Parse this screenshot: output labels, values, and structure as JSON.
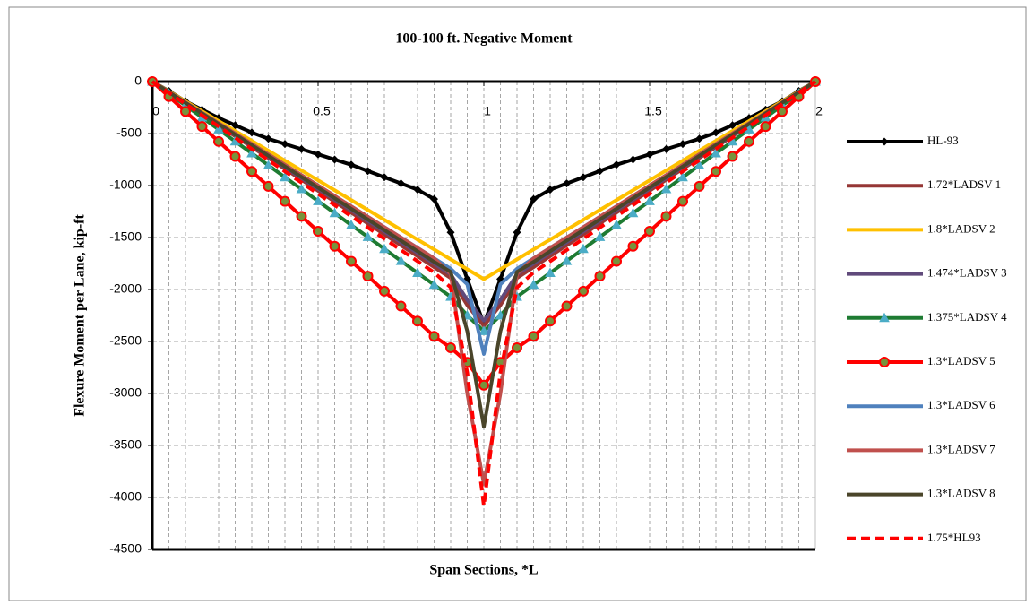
{
  "chart_data": {
    "type": "line",
    "title": "100-100 ft. Negative Moment",
    "x_label": "Span Sections, *L",
    "y_label": "Flexure Moment per Lane, kip-ft",
    "x": [
      0,
      0.05,
      0.1,
      0.15,
      0.2,
      0.25,
      0.3,
      0.35,
      0.4,
      0.45,
      0.5,
      0.55,
      0.6,
      0.65,
      0.7,
      0.75,
      0.8,
      0.85,
      0.9,
      0.95,
      1,
      1.05,
      1.1,
      1.15,
      1.2,
      1.25,
      1.3,
      1.35,
      1.4,
      1.45,
      1.5,
      1.55,
      1.6,
      1.65,
      1.7,
      1.75,
      1.8,
      1.85,
      1.9,
      1.95,
      2
    ],
    "xlim": [
      0,
      2
    ],
    "xticks": [
      0,
      0.5,
      1,
      1.5,
      2
    ],
    "ylim": [
      -4500,
      0
    ],
    "yticks": [
      0,
      -500,
      -1000,
      -1500,
      -2000,
      -2500,
      -3000,
      -3500,
      -4000,
      -4500
    ],
    "grid": true,
    "legend": "right",
    "series": [
      {
        "name": "HL-93",
        "color": "#000000",
        "marker": "diamond",
        "values": [
          0,
          -90,
          -190,
          -270,
          -350,
          -420,
          -490,
          -550,
          -600,
          -650,
          -700,
          -750,
          -800,
          -860,
          -920,
          -980,
          -1040,
          -1130,
          -1450,
          -1900,
          -2330,
          -1900,
          -1450,
          -1130,
          -1040,
          -980,
          -920,
          -860,
          -800,
          -750,
          -700,
          -650,
          -600,
          -550,
          -490,
          -420,
          -350,
          -270,
          -190,
          -90,
          0
        ]
      },
      {
        "name": "1.72*LADSV 1",
        "color": "#953735",
        "values": [
          0,
          -105,
          -210,
          -315,
          -420,
          -525,
          -630,
          -735,
          -840,
          -945,
          -1050,
          -1155,
          -1260,
          -1365,
          -1470,
          -1575,
          -1680,
          -1785,
          -1890,
          -2150,
          -2350,
          -2150,
          -1890,
          -1785,
          -1680,
          -1575,
          -1470,
          -1365,
          -1260,
          -1155,
          -1050,
          -945,
          -840,
          -735,
          -630,
          -525,
          -420,
          -315,
          -210,
          -105,
          0
        ]
      },
      {
        "name": "1.8*LADSV 2",
        "color": "#ffc000",
        "values": [
          0,
          -95,
          -190,
          -285,
          -380,
          -475,
          -570,
          -665,
          -760,
          -855,
          -950,
          -1045,
          -1140,
          -1235,
          -1330,
          -1425,
          -1520,
          -1615,
          -1710,
          -1805,
          -1900,
          -1805,
          -1710,
          -1615,
          -1520,
          -1425,
          -1330,
          -1235,
          -1140,
          -1045,
          -950,
          -855,
          -760,
          -665,
          -570,
          -475,
          -380,
          -285,
          -190,
          -95,
          0
        ]
      },
      {
        "name": "1.474*LADSV 3",
        "color": "#604a7b",
        "values": [
          0,
          -103,
          -206,
          -309,
          -412,
          -515,
          -618,
          -721,
          -824,
          -927,
          -1030,
          -1133,
          -1236,
          -1339,
          -1442,
          -1545,
          -1648,
          -1751,
          -1854,
          -2100,
          -2300,
          -2100,
          -1854,
          -1751,
          -1648,
          -1545,
          -1442,
          -1339,
          -1236,
          -1133,
          -1030,
          -927,
          -824,
          -721,
          -618,
          -515,
          -412,
          -309,
          -206,
          -103,
          0
        ]
      },
      {
        "name": "1.375*LADSV 4",
        "color": "#1e7b32",
        "marker": "triangle",
        "marker_color": "#4bacc6",
        "values": [
          0,
          -115,
          -230,
          -345,
          -460,
          -575,
          -690,
          -805,
          -920,
          -1035,
          -1150,
          -1265,
          -1380,
          -1495,
          -1610,
          -1725,
          -1840,
          -1955,
          -2070,
          -2250,
          -2400,
          -2250,
          -2070,
          -1955,
          -1840,
          -1725,
          -1610,
          -1495,
          -1380,
          -1265,
          -1150,
          -1035,
          -920,
          -805,
          -690,
          -575,
          -460,
          -345,
          -230,
          -115,
          0
        ]
      },
      {
        "name": "1.3*LADSV 5",
        "color": "#ff0000",
        "marker": "circle",
        "marker_color": "#77933c",
        "values": [
          0,
          -144,
          -288,
          -432,
          -576,
          -720,
          -864,
          -1008,
          -1152,
          -1296,
          -1440,
          -1584,
          -1728,
          -1872,
          -2016,
          -2160,
          -2304,
          -2450,
          -2560,
          -2700,
          -2920,
          -2700,
          -2560,
          -2450,
          -2304,
          -2160,
          -2016,
          -1872,
          -1728,
          -1584,
          -1440,
          -1296,
          -1152,
          -1008,
          -864,
          -720,
          -576,
          -432,
          -288,
          -144,
          0
        ]
      },
      {
        "name": "1.3*LADSV 6",
        "color": "#4f81bd",
        "values": [
          0,
          -100,
          -200,
          -300,
          -400,
          -500,
          -600,
          -700,
          -800,
          -900,
          -1000,
          -1100,
          -1200,
          -1300,
          -1400,
          -1500,
          -1600,
          -1700,
          -1800,
          -1950,
          -2620,
          -1950,
          -1800,
          -1700,
          -1600,
          -1500,
          -1400,
          -1300,
          -1200,
          -1100,
          -1000,
          -900,
          -800,
          -700,
          -600,
          -500,
          -400,
          -300,
          -200,
          -100,
          0
        ]
      },
      {
        "name": "1.3*LADSV 7",
        "color": "#c0504d",
        "values": [
          0,
          -100,
          -200,
          -300,
          -400,
          -500,
          -600,
          -700,
          -800,
          -900,
          -1000,
          -1100,
          -1200,
          -1300,
          -1400,
          -1500,
          -1600,
          -1700,
          -1850,
          -3000,
          -3870,
          -3000,
          -1850,
          -1700,
          -1600,
          -1500,
          -1400,
          -1300,
          -1200,
          -1100,
          -1000,
          -900,
          -800,
          -700,
          -600,
          -500,
          -400,
          -300,
          -200,
          -100,
          0
        ]
      },
      {
        "name": "1.3*LADSV 8",
        "color": "#4a452a",
        "values": [
          0,
          -102,
          -204,
          -306,
          -408,
          -510,
          -612,
          -714,
          -816,
          -918,
          -1020,
          -1122,
          -1224,
          -1326,
          -1428,
          -1530,
          -1632,
          -1734,
          -1830,
          -2400,
          -3320,
          -2400,
          -1830,
          -1734,
          -1632,
          -1530,
          -1428,
          -1326,
          -1224,
          -1122,
          -1020,
          -918,
          -816,
          -714,
          -612,
          -510,
          -408,
          -306,
          -204,
          -102,
          0
        ]
      },
      {
        "name": "1.75*HL93",
        "color": "#ff0000",
        "dashed": true,
        "values": [
          0,
          -108,
          -216,
          -324,
          -432,
          -540,
          -648,
          -756,
          -864,
          -972,
          -1080,
          -1188,
          -1296,
          -1404,
          -1512,
          -1620,
          -1728,
          -1836,
          -1980,
          -2800,
          -4080,
          -2800,
          -1980,
          -1836,
          -1728,
          -1620,
          -1512,
          -1404,
          -1296,
          -1188,
          -1080,
          -972,
          -864,
          -756,
          -648,
          -540,
          -432,
          -324,
          -216,
          -108,
          0
        ]
      }
    ]
  }
}
